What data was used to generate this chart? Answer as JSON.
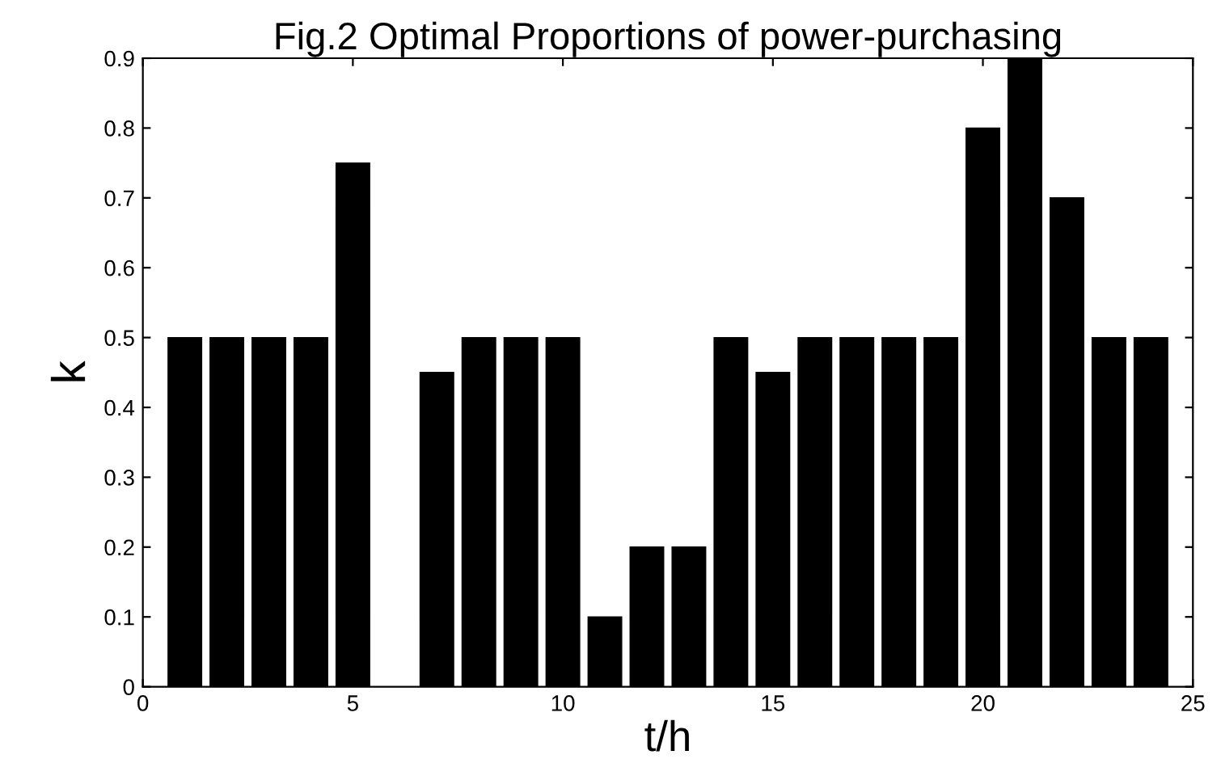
{
  "chart_data": {
    "type": "bar",
    "title": "Fig.2 Optimal Proportions of power-purchasing",
    "xlabel": "t/h",
    "ylabel": "k",
    "x": [
      1,
      2,
      3,
      4,
      5,
      6,
      7,
      8,
      9,
      10,
      11,
      12,
      13,
      14,
      15,
      16,
      17,
      18,
      19,
      20,
      21,
      22,
      23,
      24
    ],
    "values": [
      0.5,
      0.5,
      0.5,
      0.5,
      0.75,
      0,
      0.45,
      0.5,
      0.5,
      0.5,
      0.1,
      0.2,
      0.2,
      0.5,
      0.45,
      0.5,
      0.5,
      0.5,
      0.5,
      0.8,
      0.9,
      0.7,
      0.5,
      0.5
    ],
    "color": "#000000",
    "xlim": [
      0,
      25
    ],
    "xticks": [
      0,
      5,
      10,
      15,
      20,
      25
    ],
    "ylim": [
      0,
      0.9
    ],
    "yticks": [
      0,
      0.1,
      0.2,
      0.3,
      0.4,
      0.5,
      0.6,
      0.7,
      0.8,
      0.9
    ],
    "grid": false,
    "legend": false
  }
}
